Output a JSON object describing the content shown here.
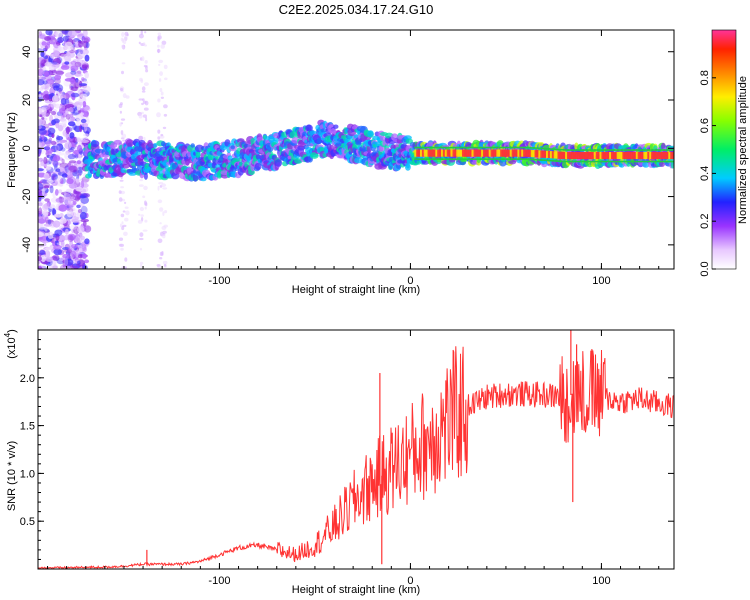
{
  "figure_title": "C2E2.2025.034.17.24.G10",
  "chart_data": [
    {
      "type": "heatmap",
      "title": "C2E2.2025.034.17.24.G10",
      "xlabel": "Height of straight line (km)",
      "ylabel": "Frequency (Hz)",
      "xlim": [
        -195,
        138
      ],
      "ylim": [
        -50,
        49
      ],
      "x_ticks": [
        -100,
        0,
        100
      ],
      "y_ticks": [
        -40,
        -20,
        0,
        20,
        40
      ],
      "x_tick_labels": [
        "-100",
        "0",
        "100"
      ],
      "y_tick_labels": [
        "-40",
        "-20",
        "0",
        "20",
        "40"
      ],
      "colorbar": {
        "label": "Normalized spectral amplitude",
        "range": [
          0,
          1
        ],
        "ticks": [
          0.0,
          0.2,
          0.4,
          0.6,
          0.8
        ],
        "tick_labels": [
          "0.0",
          "0.2",
          "0.4",
          "0.6",
          "0.8"
        ]
      },
      "ridge": {
        "x": [
          -170,
          -150,
          -130,
          -110,
          -90,
          -70,
          -55,
          -45,
          -35,
          -25,
          -15,
          0,
          20,
          40,
          60,
          80,
          100,
          120,
          138
        ],
        "y": [
          -5,
          -4,
          -5,
          -6,
          -4,
          -1,
          2,
          4,
          3,
          1,
          -1,
          -2,
          -2,
          -2,
          -2,
          -3,
          -3,
          -3,
          -3
        ]
      },
      "colors": {
        "low": "#9933ff",
        "mid": "#00ccaa",
        "high": "#ff3333"
      }
    },
    {
      "type": "line",
      "title": "",
      "xlabel": "Height of straight line (km)",
      "ylabel": "SNR (10 * v/v)",
      "scale_label_prefix": "(x10",
      "scale_label_exponent": "4",
      "scale_label_suffix": ")",
      "xlim": [
        -195,
        138
      ],
      "ylim": [
        0,
        2.5
      ],
      "x_ticks": [
        -100,
        0,
        100
      ],
      "y_ticks": [
        0.5,
        1.0,
        1.5,
        2.0
      ],
      "x_tick_labels": [
        "-100",
        "0",
        "100"
      ],
      "y_tick_labels": [
        "0.5",
        "1.0",
        "1.5",
        "2.0"
      ],
      "line_color": "#ff3333",
      "envelope": {
        "x": [
          -195,
          -160,
          -150,
          -140,
          -120,
          -110,
          -100,
          -90,
          -80,
          -70,
          -60,
          -50,
          -40,
          -30,
          -20,
          -10,
          0,
          10,
          20,
          30,
          40,
          50,
          60,
          70,
          80,
          90,
          100,
          110,
          120,
          130,
          138
        ],
        "y": [
          0.01,
          0.02,
          0.03,
          0.05,
          0.05,
          0.08,
          0.15,
          0.22,
          0.25,
          0.2,
          0.15,
          0.25,
          0.45,
          0.7,
          0.9,
          1.05,
          1.2,
          1.35,
          1.55,
          1.7,
          1.8,
          1.83,
          1.83,
          1.82,
          1.8,
          1.85,
          1.8,
          1.75,
          1.78,
          1.73,
          1.7
        ]
      },
      "spikes": [
        {
          "x": -138,
          "y": 0.2
        },
        {
          "x": -16,
          "y": 2.05
        },
        {
          "x": -15,
          "y": 0.05
        },
        {
          "x": 84,
          "y": 2.5
        },
        {
          "x": 85,
          "y": 0.7
        },
        {
          "x": 87,
          "y": 2.35
        },
        {
          "x": 95,
          "y": 2.3
        },
        {
          "x": 100,
          "y": 2.15
        }
      ]
    }
  ]
}
